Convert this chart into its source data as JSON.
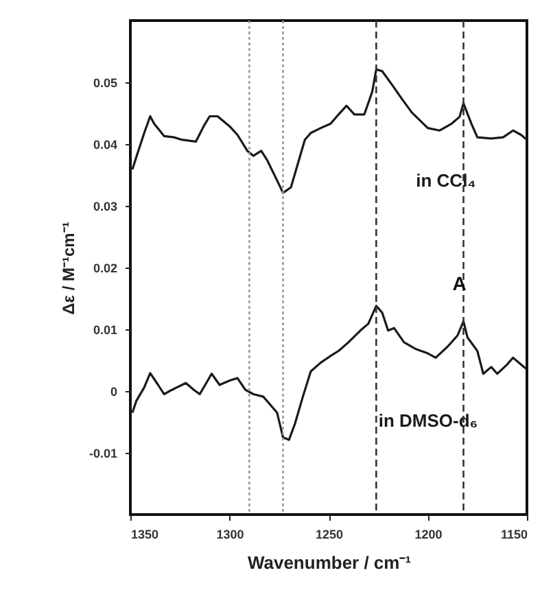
{
  "chart_data": {
    "type": "line",
    "xlabel": "Wavenumber / cm⁻¹",
    "ylabel": "Δε / M⁻¹cm⁻¹",
    "xlim": [
      1350,
      1150
    ],
    "ylim": [
      -0.02,
      0.06
    ],
    "xticks": [
      1350,
      1300,
      1250,
      1200,
      1150
    ],
    "yticks": [
      -0.01,
      0,
      0.01,
      0.02,
      0.03,
      0.04,
      0.05
    ],
    "grid": false,
    "marker": "none",
    "line_style": "solid",
    "series": [
      {
        "name": "in CCl₄",
        "color": "#1a1a1a",
        "x": [
          1349,
          1347,
          1343,
          1340,
          1338,
          1333,
          1328,
          1324,
          1317,
          1313,
          1310,
          1306,
          1300,
          1296,
          1291,
          1288,
          1284,
          1281,
          1276,
          1273,
          1269,
          1266,
          1262,
          1259,
          1254,
          1249,
          1245,
          1241,
          1237,
          1232,
          1228,
          1226,
          1223,
          1218,
          1213,
          1208,
          1200,
          1194,
          1188,
          1184,
          1182,
          1178,
          1175,
          1168,
          1162,
          1157,
          1153,
          1150
        ],
        "values": [
          0.0359,
          0.0379,
          0.0418,
          0.0445,
          0.0433,
          0.0413,
          0.0411,
          0.0407,
          0.0404,
          0.0429,
          0.0445,
          0.0445,
          0.0429,
          0.0415,
          0.0389,
          0.0381,
          0.0389,
          0.0374,
          0.0341,
          0.0321,
          0.033,
          0.0363,
          0.0407,
          0.0418,
          0.0426,
          0.0433,
          0.0448,
          0.0462,
          0.0448,
          0.0448,
          0.0485,
          0.0521,
          0.0518,
          0.0496,
          0.0473,
          0.0451,
          0.0426,
          0.0422,
          0.0433,
          0.0444,
          0.0466,
          0.0433,
          0.0411,
          0.0409,
          0.0411,
          0.0422,
          0.0415,
          0.0407
        ]
      },
      {
        "name": "in DMSO-d₆",
        "color": "#1a1a1a",
        "x": [
          1349,
          1347,
          1343,
          1340,
          1336,
          1333,
          1329,
          1322,
          1318,
          1315,
          1311,
          1309,
          1305,
          1300,
          1296,
          1292,
          1288,
          1283,
          1280,
          1276,
          1273,
          1270,
          1267,
          1263,
          1259,
          1254,
          1249,
          1245,
          1240,
          1234,
          1230,
          1226,
          1223,
          1220,
          1217,
          1212,
          1206,
          1200,
          1196,
          1190,
          1185,
          1182,
          1180,
          1175,
          1172,
          1168,
          1165,
          1160,
          1157,
          1153,
          1150
        ],
        "values": [
          -0.0035,
          -0.0016,
          0.0006,
          0.0029,
          0.001,
          -0.0005,
          0.0002,
          0.0013,
          0.0002,
          -0.0005,
          0.0017,
          0.0028,
          0.001,
          0.0017,
          0.0021,
          0.0002,
          -0.0005,
          -0.0009,
          -0.002,
          -0.0035,
          -0.0075,
          -0.0079,
          -0.0053,
          -0.0009,
          0.0032,
          0.0046,
          0.0057,
          0.0065,
          0.0079,
          0.0098,
          0.0109,
          0.0138,
          0.0127,
          0.0098,
          0.0102,
          0.0079,
          0.0068,
          0.0061,
          0.0054,
          0.0072,
          0.009,
          0.0113,
          0.0087,
          0.0065,
          0.0028,
          0.0039,
          0.0028,
          0.0043,
          0.0054,
          0.0043,
          0.0035
        ]
      }
    ],
    "ref_lines": [
      {
        "axis": "x",
        "value": 1290,
        "color": "#9a9a9a",
        "line_style": "dotted"
      },
      {
        "axis": "x",
        "value": 1273,
        "color": "#9a9a9a",
        "line_style": "dotted"
      },
      {
        "axis": "x",
        "value": 1226,
        "color": "#333333",
        "line_style": "dashed"
      },
      {
        "axis": "x",
        "value": 1182,
        "color": "#333333",
        "line_style": "dashed"
      }
    ],
    "annotations": [
      {
        "text": "A",
        "x": 1184,
        "y": 0.0172
      }
    ]
  }
}
